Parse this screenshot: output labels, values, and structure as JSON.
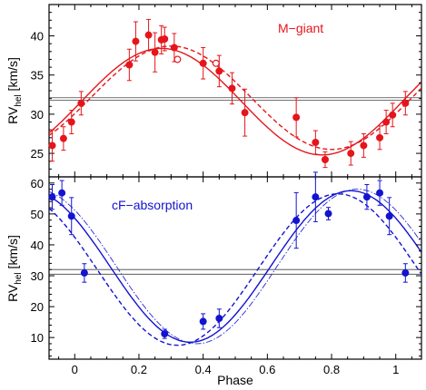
{
  "chart_data": [
    {
      "type": "scatter",
      "panel_label": "M−giant",
      "ylabel": "RV",
      "ylabel_sub": "hel",
      "ylabel_unit": " [km/s]",
      "xlim": [
        -0.08,
        1.08
      ],
      "ylim": [
        22,
        44
      ],
      "yticks": [
        25,
        30,
        35,
        40
      ],
      "color": "#e4161b",
      "systemic_lines": [
        31.8,
        32.1
      ],
      "series": [
        {
          "marker": "filled-circle",
          "x": [
            -0.07,
            -0.035,
            -0.01,
            0.02,
            0.17,
            0.19,
            0.23,
            0.25,
            0.27,
            0.28,
            0.31,
            0.4,
            0.45,
            0.49,
            0.53,
            0.69,
            0.75,
            0.78,
            0.86,
            0.9,
            0.95,
            0.97,
            0.99,
            1.03
          ],
          "y": [
            26.0,
            26.9,
            29.0,
            31.4,
            36.3,
            39.3,
            40.1,
            37.9,
            39.5,
            39.6,
            38.5,
            36.5,
            35.5,
            33.3,
            30.2,
            29.6,
            26.4,
            24.2,
            25.0,
            26.0,
            27.0,
            29.0,
            29.9,
            31.4
          ],
          "err": [
            2.0,
            1.5,
            1.5,
            1.5,
            2.0,
            2.5,
            2.0,
            2.5,
            1.8,
            1.5,
            1.8,
            2.0,
            2.0,
            2.0,
            3.0,
            2.5,
            1.5,
            1.0,
            1.5,
            1.5,
            1.5,
            1.5,
            1.5,
            1.5
          ]
        },
        {
          "marker": "open-circle",
          "x": [
            0.32,
            0.44
          ],
          "y": [
            37.0,
            36.5
          ],
          "err": [
            0,
            0
          ]
        }
      ],
      "curves": [
        {
          "style": "solid",
          "gamma": 31.6,
          "K": 6.8,
          "phi_max": 0.27
        },
        {
          "style": "dashed",
          "gamma": 32.1,
          "K": 6.6,
          "phi_max": 0.3
        }
      ]
    },
    {
      "type": "scatter",
      "panel_label": "cF−absorption",
      "ylabel": "RV",
      "ylabel_sub": "hel",
      "ylabel_unit": " [km/s]",
      "xlabel": "Phase",
      "xlim": [
        -0.08,
        1.08
      ],
      "ylim": [
        3,
        62
      ],
      "yticks": [
        10,
        20,
        30,
        40,
        50,
        60
      ],
      "xticks": [
        0,
        0.2,
        0.4,
        0.6,
        0.8,
        1
      ],
      "color": "#1313d0",
      "systemic_lines": [
        30.5,
        32.0
      ],
      "series": [
        {
          "marker": "filled-circle",
          "x": [
            -0.07,
            -0.04,
            -0.01,
            0.03,
            0.28,
            0.4,
            0.45,
            0.69,
            0.75,
            0.79,
            0.91,
            0.95,
            0.98,
            1.03
          ],
          "y": [
            55.5,
            56.8,
            49.3,
            30.9,
            11.2,
            15.2,
            16.2,
            47.9,
            55.5,
            50.1,
            55.5,
            56.8,
            49.3,
            30.9
          ],
          "err": [
            4.0,
            4.0,
            6.0,
            3.0,
            1.5,
            2.5,
            3.0,
            9.0,
            8.0,
            2.0,
            4.0,
            4.0,
            6.0,
            3.0
          ]
        }
      ],
      "curves": [
        {
          "style": "solid",
          "gamma": 33.0,
          "K": 24.5,
          "phi_max": 0.86
        },
        {
          "style": "dashed",
          "gamma": 32.0,
          "K": 24.5,
          "phi_max": 0.82
        },
        {
          "style": "thin-dashdot",
          "gamma": 33.0,
          "K": 25.0,
          "phi_max": 0.88
        }
      ]
    }
  ]
}
